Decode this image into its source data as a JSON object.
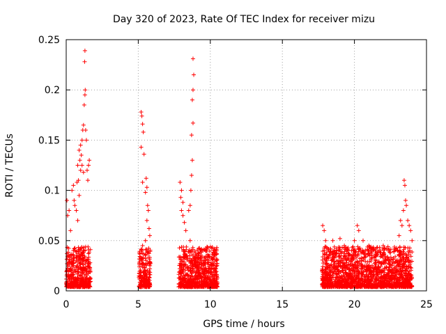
{
  "chart_data": {
    "type": "scatter",
    "title": "Day 320 of 2023, Rate Of TEC Index for receiver mizu",
    "xlabel": "GPS time / hours",
    "ylabel": "ROTI / TECUs",
    "xlim": [
      0,
      25
    ],
    "ylim": [
      0,
      0.25
    ],
    "x_ticks": [
      "0",
      "5",
      "10",
      "15",
      "20",
      "25"
    ],
    "y_ticks": [
      "0",
      "0.05",
      "0.1",
      "0.15",
      "0.2",
      "0.25"
    ],
    "grid": true,
    "marker": "plus",
    "colors": {
      "series": "#ff0000",
      "grid": "#a0a0a0",
      "axis": "#000000"
    },
    "series": [
      {
        "values": [
          [
            0.05,
            0.09
          ],
          [
            0.1,
            0.075
          ],
          [
            0.2,
            0.08
          ],
          [
            0.3,
            0.06
          ],
          [
            0.4,
            0.1
          ],
          [
            0.5,
            0.105
          ],
          [
            0.55,
            0.09
          ],
          [
            0.6,
            0.085
          ],
          [
            0.7,
            0.08
          ],
          [
            0.8,
            0.07
          ],
          [
            0.9,
            0.095
          ],
          [
            1.0,
            0.12
          ],
          [
            1.05,
            0.135
          ],
          [
            1.1,
            0.15
          ],
          [
            1.15,
            0.16
          ],
          [
            1.2,
            0.165
          ],
          [
            1.25,
            0.185
          ],
          [
            1.3,
            0.195
          ],
          [
            1.32,
            0.2
          ],
          [
            1.28,
            0.228
          ],
          [
            1.3,
            0.239
          ],
          [
            1.35,
            0.16
          ],
          [
            1.4,
            0.15
          ],
          [
            1.45,
            0.12
          ],
          [
            1.5,
            0.11
          ],
          [
            1.55,
            0.125
          ],
          [
            1.6,
            0.13
          ],
          [
            1.2,
            0.118
          ],
          [
            1.1,
            0.125
          ],
          [
            0.95,
            0.13
          ],
          [
            0.85,
            0.11
          ],
          [
            0.75,
            0.108
          ],
          [
            0.8,
            0.125
          ],
          [
            0.9,
            0.14
          ],
          [
            1.0,
            0.145
          ],
          [
            5.2,
            0.178
          ],
          [
            5.25,
            0.174
          ],
          [
            5.3,
            0.166
          ],
          [
            5.35,
            0.158
          ],
          [
            5.2,
            0.143
          ],
          [
            5.4,
            0.136
          ],
          [
            5.3,
            0.108
          ],
          [
            5.55,
            0.112
          ],
          [
            5.6,
            0.103
          ],
          [
            5.5,
            0.098
          ],
          [
            5.65,
            0.085
          ],
          [
            5.7,
            0.08
          ],
          [
            5.6,
            0.07
          ],
          [
            5.75,
            0.062
          ],
          [
            5.8,
            0.055
          ],
          [
            5.5,
            0.05
          ],
          [
            5.3,
            0.045
          ],
          [
            7.9,
            0.108
          ],
          [
            8.0,
            0.1
          ],
          [
            7.95,
            0.093
          ],
          [
            8.1,
            0.088
          ],
          [
            8.0,
            0.08
          ],
          [
            8.1,
            0.075
          ],
          [
            8.2,
            0.068
          ],
          [
            8.3,
            0.06
          ],
          [
            8.5,
            0.08
          ],
          [
            8.6,
            0.085
          ],
          [
            8.65,
            0.1
          ],
          [
            8.7,
            0.115
          ],
          [
            8.75,
            0.13
          ],
          [
            8.7,
            0.155
          ],
          [
            8.8,
            0.167
          ],
          [
            8.75,
            0.19
          ],
          [
            8.8,
            0.2
          ],
          [
            8.85,
            0.215
          ],
          [
            8.8,
            0.231
          ],
          [
            8.6,
            0.05
          ],
          [
            9.0,
            0.035
          ],
          [
            9.2,
            0.032
          ],
          [
            9.5,
            0.03
          ],
          [
            9.8,
            0.028
          ],
          [
            10.2,
            0.025
          ],
          [
            10.4,
            0.022
          ],
          [
            17.8,
            0.065
          ],
          [
            17.9,
            0.06
          ],
          [
            18.0,
            0.05
          ],
          [
            18.5,
            0.05
          ],
          [
            19.0,
            0.052
          ],
          [
            19.3,
            0.045
          ],
          [
            19.8,
            0.04
          ],
          [
            20.0,
            0.05
          ],
          [
            20.2,
            0.065
          ],
          [
            20.3,
            0.06
          ],
          [
            20.6,
            0.05
          ],
          [
            21.0,
            0.045
          ],
          [
            21.5,
            0.035
          ],
          [
            22.0,
            0.045
          ],
          [
            22.5,
            0.038
          ],
          [
            23.0,
            0.04
          ],
          [
            23.1,
            0.055
          ],
          [
            23.2,
            0.07
          ],
          [
            23.3,
            0.065
          ],
          [
            23.4,
            0.08
          ],
          [
            23.45,
            0.11
          ],
          [
            23.5,
            0.105
          ],
          [
            23.55,
            0.09
          ],
          [
            23.6,
            0.085
          ],
          [
            23.7,
            0.07
          ],
          [
            23.8,
            0.065
          ],
          [
            23.9,
            0.06
          ],
          [
            24.0,
            0.05
          ]
        ]
      }
    ]
  }
}
